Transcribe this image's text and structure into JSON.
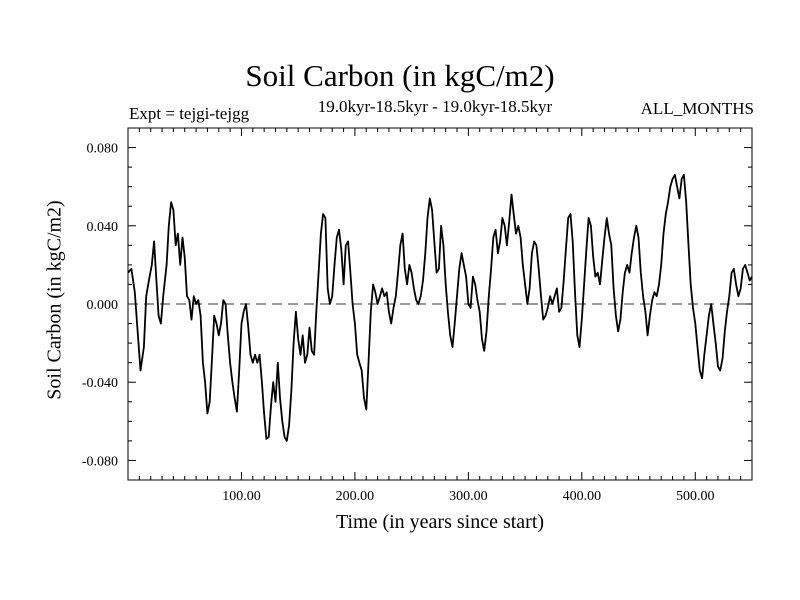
{
  "chart_data": {
    "type": "line",
    "title": "Soil Carbon (in kgC/m2)",
    "subtitle": "19.0kyr-18.5kyr - 19.0kyr-18.5kyr",
    "left_annotation": "Expt = tejgi-tejgg",
    "right_annotation": "ALL_MONTHS",
    "xlabel": "Time (in years since start)",
    "ylabel": "Soil Carbon (in kgC/m2)",
    "xlim": [
      0,
      550
    ],
    "ylim": [
      -0.09,
      0.09
    ],
    "xticks": [
      100,
      200,
      300,
      400,
      500
    ],
    "xtick_labels": [
      "100.00",
      "200.00",
      "300.00",
      "400.00",
      "500.00"
    ],
    "yticks": [
      0.08,
      0.04,
      0.0,
      -0.04,
      -0.08
    ],
    "ytick_labels": [
      "0.080",
      "0.040",
      "0.000",
      "-0.040",
      "-0.080"
    ],
    "reference_line": {
      "y": 0.0,
      "style": "dashed"
    },
    "series": [
      {
        "name": "Soil Carbon",
        "points": [
          [
            0,
            0.016
          ],
          [
            3,
            0.018
          ],
          [
            6,
            0.006
          ],
          [
            9,
            -0.018
          ],
          [
            11,
            -0.034
          ],
          [
            14,
            -0.022
          ],
          [
            16,
            0.004
          ],
          [
            19,
            0.014
          ],
          [
            21,
            0.02
          ],
          [
            23,
            0.032
          ],
          [
            25,
            0.012
          ],
          [
            27,
            -0.006
          ],
          [
            29,
            -0.01
          ],
          [
            31,
            0.004
          ],
          [
            34,
            0.02
          ],
          [
            36,
            0.04
          ],
          [
            38,
            0.052
          ],
          [
            40,
            0.048
          ],
          [
            42,
            0.03
          ],
          [
            44,
            0.036
          ],
          [
            46,
            0.02
          ],
          [
            48,
            0.034
          ],
          [
            50,
            0.024
          ],
          [
            52,
            0.004
          ],
          [
            54,
            0.002
          ],
          [
            56,
            -0.008
          ],
          [
            58,
            0.004
          ],
          [
            60,
            0.0
          ],
          [
            62,
            0.002
          ],
          [
            64,
            -0.006
          ],
          [
            66,
            -0.03
          ],
          [
            68,
            -0.04
          ],
          [
            70,
            -0.056
          ],
          [
            72,
            -0.05
          ],
          [
            74,
            -0.028
          ],
          [
            76,
            -0.006
          ],
          [
            78,
            -0.01
          ],
          [
            80,
            -0.016
          ],
          [
            82,
            -0.01
          ],
          [
            84,
            0.002
          ],
          [
            86,
            0.0
          ],
          [
            88,
            -0.016
          ],
          [
            90,
            -0.03
          ],
          [
            92,
            -0.04
          ],
          [
            94,
            -0.048
          ],
          [
            96,
            -0.055
          ],
          [
            98,
            -0.034
          ],
          [
            100,
            -0.01
          ],
          [
            102,
            -0.004
          ],
          [
            104,
            0.0
          ],
          [
            106,
            -0.012
          ],
          [
            108,
            -0.026
          ],
          [
            110,
            -0.03
          ],
          [
            112,
            -0.026
          ],
          [
            114,
            -0.03
          ],
          [
            116,
            -0.026
          ],
          [
            118,
            -0.04
          ],
          [
            120,
            -0.056
          ],
          [
            122,
            -0.069
          ],
          [
            124,
            -0.068
          ],
          [
            126,
            -0.052
          ],
          [
            128,
            -0.04
          ],
          [
            130,
            -0.05
          ],
          [
            132,
            -0.03
          ],
          [
            134,
            -0.048
          ],
          [
            136,
            -0.06
          ],
          [
            138,
            -0.068
          ],
          [
            140,
            -0.07
          ],
          [
            142,
            -0.062
          ],
          [
            144,
            -0.044
          ],
          [
            146,
            -0.02
          ],
          [
            148,
            -0.004
          ],
          [
            150,
            -0.018
          ],
          [
            152,
            -0.026
          ],
          [
            154,
            -0.016
          ],
          [
            156,
            -0.03
          ],
          [
            158,
            -0.026
          ],
          [
            160,
            -0.012
          ],
          [
            162,
            -0.024
          ],
          [
            164,
            -0.026
          ],
          [
            166,
            -0.004
          ],
          [
            168,
            0.016
          ],
          [
            170,
            0.036
          ],
          [
            172,
            0.046
          ],
          [
            174,
            0.044
          ],
          [
            176,
            0.008
          ],
          [
            178,
            0.0
          ],
          [
            180,
            0.004
          ],
          [
            182,
            0.02
          ],
          [
            184,
            0.034
          ],
          [
            186,
            0.038
          ],
          [
            188,
            0.028
          ],
          [
            190,
            0.01
          ],
          [
            192,
            0.03
          ],
          [
            194,
            0.032
          ],
          [
            196,
            0.016
          ],
          [
            198,
            0.0
          ],
          [
            200,
            -0.01
          ],
          [
            202,
            -0.026
          ],
          [
            204,
            -0.03
          ],
          [
            206,
            -0.034
          ],
          [
            208,
            -0.048
          ],
          [
            210,
            -0.054
          ],
          [
            212,
            -0.03
          ],
          [
            214,
            -0.004
          ],
          [
            216,
            0.01
          ],
          [
            218,
            0.006
          ],
          [
            220,
            0.0
          ],
          [
            222,
            0.004
          ],
          [
            224,
            0.008
          ],
          [
            226,
            0.004
          ],
          [
            228,
            0.006
          ],
          [
            230,
            -0.004
          ],
          [
            232,
            -0.01
          ],
          [
            234,
            -0.002
          ],
          [
            236,
            0.004
          ],
          [
            238,
            0.016
          ],
          [
            240,
            0.03
          ],
          [
            242,
            0.036
          ],
          [
            244,
            0.018
          ],
          [
            246,
            0.01
          ],
          [
            248,
            0.02
          ],
          [
            250,
            0.016
          ],
          [
            252,
            0.008
          ],
          [
            254,
            0.002
          ],
          [
            256,
            0.0
          ],
          [
            258,
            0.004
          ],
          [
            260,
            0.012
          ],
          [
            262,
            0.026
          ],
          [
            264,
            0.044
          ],
          [
            266,
            0.054
          ],
          [
            268,
            0.048
          ],
          [
            270,
            0.032
          ],
          [
            272,
            0.016
          ],
          [
            274,
            0.018
          ],
          [
            276,
            0.04
          ],
          [
            278,
            0.03
          ],
          [
            280,
            0.01
          ],
          [
            282,
            -0.004
          ],
          [
            284,
            -0.016
          ],
          [
            286,
            -0.022
          ],
          [
            288,
            -0.01
          ],
          [
            290,
            0.004
          ],
          [
            292,
            0.018
          ],
          [
            294,
            0.026
          ],
          [
            296,
            0.02
          ],
          [
            298,
            0.014
          ],
          [
            300,
            0.0
          ],
          [
            302,
            -0.002
          ],
          [
            304,
            0.014
          ],
          [
            306,
            0.01
          ],
          [
            308,
            0.002
          ],
          [
            310,
            -0.004
          ],
          [
            312,
            -0.018
          ],
          [
            314,
            -0.024
          ],
          [
            316,
            -0.014
          ],
          [
            318,
            0.004
          ],
          [
            320,
            0.018
          ],
          [
            322,
            0.034
          ],
          [
            324,
            0.038
          ],
          [
            326,
            0.026
          ],
          [
            328,
            0.032
          ],
          [
            330,
            0.044
          ],
          [
            332,
            0.04
          ],
          [
            334,
            0.03
          ],
          [
            336,
            0.042
          ],
          [
            338,
            0.056
          ],
          [
            340,
            0.046
          ],
          [
            342,
            0.036
          ],
          [
            344,
            0.04
          ],
          [
            346,
            0.034
          ],
          [
            348,
            0.02
          ],
          [
            350,
            0.01
          ],
          [
            352,
            0.0
          ],
          [
            354,
            0.008
          ],
          [
            356,
            0.026
          ],
          [
            358,
            0.032
          ],
          [
            360,
            0.03
          ],
          [
            362,
            0.018
          ],
          [
            364,
            0.004
          ],
          [
            366,
            -0.008
          ],
          [
            368,
            -0.006
          ],
          [
            370,
            -0.002
          ],
          [
            372,
            0.004
          ],
          [
            374,
            0.0
          ],
          [
            376,
            0.004
          ],
          [
            378,
            0.008
          ],
          [
            380,
            -0.004
          ],
          [
            382,
            -0.002
          ],
          [
            384,
            0.012
          ],
          [
            386,
            0.028
          ],
          [
            388,
            0.044
          ],
          [
            390,
            0.046
          ],
          [
            392,
            0.032
          ],
          [
            394,
            0.006
          ],
          [
            396,
            -0.016
          ],
          [
            398,
            -0.022
          ],
          [
            400,
            -0.008
          ],
          [
            402,
            0.01
          ],
          [
            404,
            0.028
          ],
          [
            406,
            0.044
          ],
          [
            408,
            0.04
          ],
          [
            410,
            0.024
          ],
          [
            412,
            0.014
          ],
          [
            414,
            0.016
          ],
          [
            416,
            0.01
          ],
          [
            418,
            0.022
          ],
          [
            420,
            0.034
          ],
          [
            422,
            0.044
          ],
          [
            424,
            0.036
          ],
          [
            426,
            0.03
          ],
          [
            428,
            0.008
          ],
          [
            430,
            -0.006
          ],
          [
            432,
            -0.014
          ],
          [
            434,
            -0.008
          ],
          [
            436,
            0.006
          ],
          [
            438,
            0.016
          ],
          [
            440,
            0.02
          ],
          [
            442,
            0.016
          ],
          [
            444,
            0.026
          ],
          [
            446,
            0.034
          ],
          [
            448,
            0.04
          ],
          [
            450,
            0.034
          ],
          [
            452,
            0.016
          ],
          [
            454,
            0.004
          ],
          [
            456,
            -0.004
          ],
          [
            458,
            -0.016
          ],
          [
            460,
            -0.006
          ],
          [
            462,
            0.002
          ],
          [
            464,
            0.006
          ],
          [
            466,
            0.004
          ],
          [
            468,
            0.01
          ],
          [
            470,
            0.02
          ],
          [
            472,
            0.036
          ],
          [
            474,
            0.046
          ],
          [
            476,
            0.052
          ],
          [
            478,
            0.06
          ],
          [
            480,
            0.064
          ],
          [
            482,
            0.066
          ],
          [
            484,
            0.06
          ],
          [
            486,
            0.054
          ],
          [
            488,
            0.064
          ],
          [
            490,
            0.066
          ],
          [
            492,
            0.052
          ],
          [
            494,
            0.03
          ],
          [
            496,
            0.01
          ],
          [
            498,
            -0.002
          ],
          [
            500,
            -0.01
          ],
          [
            502,
            -0.022
          ],
          [
            504,
            -0.034
          ],
          [
            506,
            -0.038
          ],
          [
            508,
            -0.026
          ],
          [
            510,
            -0.016
          ],
          [
            512,
            -0.006
          ],
          [
            514,
            0.0
          ],
          [
            516,
            -0.01
          ],
          [
            518,
            -0.02
          ],
          [
            520,
            -0.032
          ],
          [
            522,
            -0.034
          ],
          [
            524,
            -0.028
          ],
          [
            526,
            -0.014
          ],
          [
            528,
            -0.004
          ],
          [
            530,
            0.004
          ],
          [
            532,
            0.016
          ],
          [
            534,
            0.018
          ],
          [
            536,
            0.01
          ],
          [
            538,
            0.004
          ],
          [
            540,
            0.008
          ],
          [
            542,
            0.018
          ],
          [
            544,
            0.02
          ],
          [
            546,
            0.016
          ],
          [
            548,
            0.012
          ],
          [
            550,
            0.014
          ]
        ]
      }
    ]
  }
}
